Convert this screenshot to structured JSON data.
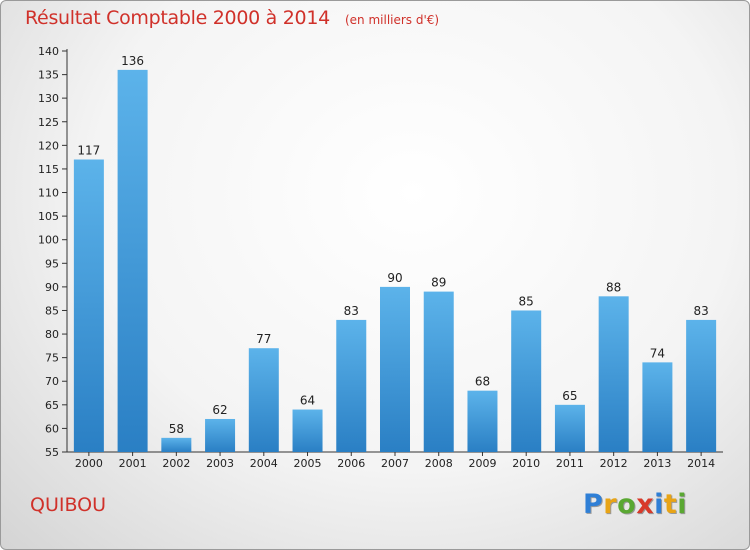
{
  "header": {
    "title": "Résultat Comptable 2000 à 2014",
    "subtitle": "(en milliers d'€)"
  },
  "commune": "QUIBOU",
  "logo": {
    "letters": [
      "P",
      "r",
      "o",
      "x",
      "i",
      "t",
      "i"
    ],
    "colors": [
      "#2f7fd6",
      "#e8a416",
      "#5aa832",
      "#d83a2a",
      "#2f7fd6",
      "#e8a416",
      "#5aa832"
    ]
  },
  "colors": {
    "title": "#d0312a",
    "bar_light": "#5cb3ea",
    "bar_dark": "#2a7fc4"
  },
  "chart_data": {
    "type": "bar",
    "title": "Résultat Comptable 2000 à 2014",
    "subtitle": "(en milliers d'€)",
    "xlabel": "",
    "ylabel": "",
    "categories": [
      "2000",
      "2001",
      "2002",
      "2003",
      "2004",
      "2005",
      "2006",
      "2007",
      "2008",
      "2009",
      "2010",
      "2011",
      "2012",
      "2013",
      "2014"
    ],
    "values": [
      117,
      136,
      58,
      62,
      77,
      64,
      83,
      90,
      89,
      68,
      85,
      65,
      88,
      74,
      83
    ],
    "ylim": [
      55,
      140
    ],
    "yticks": [
      55,
      60,
      65,
      70,
      75,
      80,
      85,
      90,
      95,
      100,
      105,
      110,
      115,
      120,
      125,
      130,
      135,
      140
    ],
    "grid": false,
    "data_labels": true
  }
}
